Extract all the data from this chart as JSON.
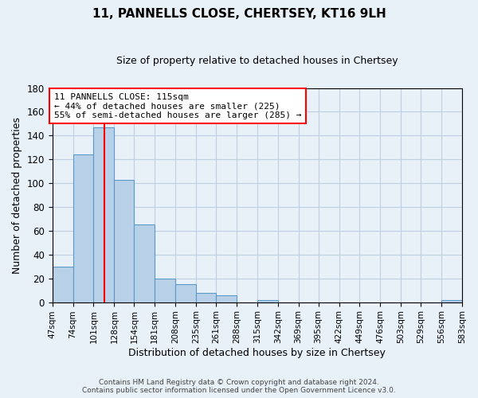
{
  "title": "11, PANNELLS CLOSE, CHERTSEY, KT16 9LH",
  "subtitle": "Size of property relative to detached houses in Chertsey",
  "xlabel": "Distribution of detached houses by size in Chertsey",
  "ylabel": "Number of detached properties",
  "bar_edges": [
    47,
    74,
    101,
    128,
    154,
    181,
    208,
    235,
    261,
    288,
    315,
    342,
    369,
    395,
    422,
    449,
    476,
    503,
    529,
    556,
    583
  ],
  "bar_heights": [
    30,
    124,
    147,
    103,
    65,
    20,
    15,
    8,
    6,
    0,
    2,
    0,
    0,
    0,
    0,
    0,
    0,
    0,
    0,
    2
  ],
  "tick_labels": [
    "47sqm",
    "74sqm",
    "101sqm",
    "128sqm",
    "154sqm",
    "181sqm",
    "208sqm",
    "235sqm",
    "261sqm",
    "288sqm",
    "315sqm",
    "342sqm",
    "369sqm",
    "395sqm",
    "422sqm",
    "449sqm",
    "476sqm",
    "503sqm",
    "529sqm",
    "556sqm",
    "583sqm"
  ],
  "bar_color": "#b8d0e8",
  "bar_edge_color": "#5a9ac8",
  "vline_x": 115,
  "vline_color": "red",
  "ylim": [
    0,
    180
  ],
  "yticks": [
    0,
    20,
    40,
    60,
    80,
    100,
    120,
    140,
    160,
    180
  ],
  "annotation_title": "11 PANNELLS CLOSE: 115sqm",
  "annotation_line1": "← 44% of detached houses are smaller (225)",
  "annotation_line2": "55% of semi-detached houses are larger (285) →",
  "footer1": "Contains HM Land Registry data © Crown copyright and database right 2024.",
  "footer2": "Contains public sector information licensed under the Open Government Licence v3.0.",
  "bg_color": "#e8f0f8",
  "grid_color": "#c0d0e0"
}
